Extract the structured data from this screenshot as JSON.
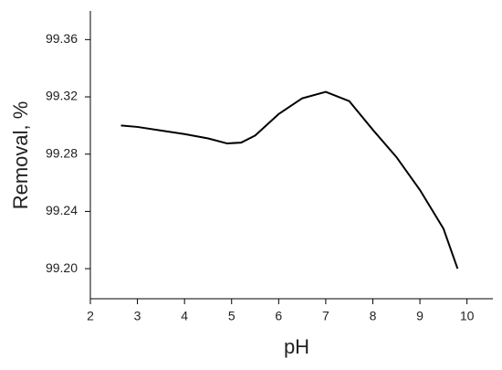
{
  "chart_data": {
    "type": "line",
    "x_label": "pH",
    "y_label": "Removal, %",
    "x": [
      2.65,
      3.0,
      3.5,
      4.0,
      4.5,
      4.9,
      5.2,
      5.5,
      6.0,
      6.5,
      7.0,
      7.5,
      8.0,
      8.5,
      9.0,
      9.5,
      9.8
    ],
    "series": [
      {
        "color": "#000000",
        "values": [
          99.3,
          99.299,
          99.2965,
          99.294,
          99.291,
          99.2875,
          99.288,
          99.293,
          99.308,
          99.319,
          99.3235,
          99.317,
          99.297,
          99.278,
          99.255,
          99.228,
          99.2
        ]
      }
    ],
    "xlim": [
      2,
      10.55
    ],
    "xticks": [
      2,
      3,
      4,
      5,
      6,
      7,
      8,
      9,
      10
    ],
    "ylim": [
      99.179,
      99.38
    ],
    "yticks": [
      {
        "value": 99.2,
        "label": "99.20"
      },
      99.24,
      99.28,
      99.32,
      99.36
    ]
  }
}
